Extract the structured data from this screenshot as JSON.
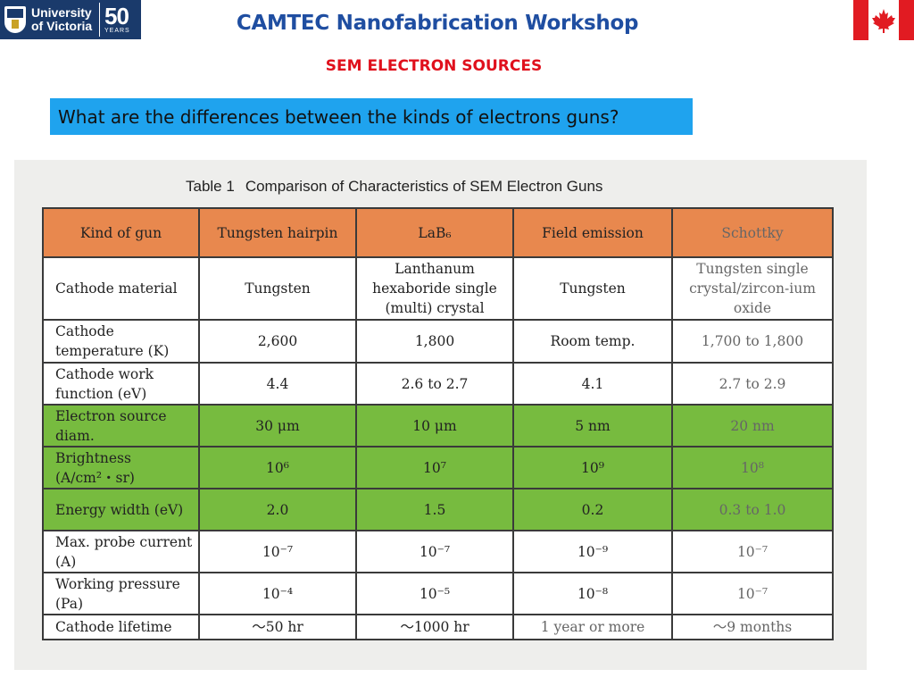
{
  "header": {
    "logo_text": "University of Victoria",
    "logo_anniversary": "50",
    "logo_years": "YEARS",
    "title": "CAMTEC Nanofabrication Workshop",
    "subtitle": "SEM ELECTRON SOURCES"
  },
  "question": "What are the differences between the kinds of electrons guns?",
  "table": {
    "caption_number": "Table 1",
    "caption_text": "Comparison of Characteristics of SEM Electron Guns",
    "headers": [
      "Kind of gun",
      "Tungsten hairpin",
      "LaB₆",
      "Field emission",
      "Schottky"
    ],
    "rows": [
      [
        "Cathode material",
        "Tungsten",
        "Lanthanum hexaboride single (multi) crystal",
        "Tungsten",
        "Tungsten single crystal/zircon-ium oxide"
      ],
      [
        "Cathode temperature (K)",
        "2,600",
        "1,800",
        "Room temp.",
        "1,700 to 1,800"
      ],
      [
        "Cathode work function (eV)",
        "4.4",
        "2.6 to 2.7",
        "4.1",
        "2.7 to 2.9"
      ],
      [
        "Electron source diam.",
        "30 μm",
        "10 μm",
        "5 nm",
        "20 nm"
      ],
      [
        "Brightness (A/cm²・sr)",
        "10⁶",
        "10⁷",
        "10⁹",
        "10⁸"
      ],
      [
        "Energy width (eV)",
        "2.0",
        "1.5",
        "0.2",
        "0.3 to 1.0"
      ],
      [
        "Max. probe current (A)",
        "10⁻⁷",
        "10⁻⁷",
        "10⁻⁹",
        "10⁻⁷"
      ],
      [
        "Working pressure (Pa)",
        "10⁻⁴",
        "10⁻⁵",
        "10⁻⁸",
        "10⁻⁷"
      ],
      [
        "Cathode lifetime",
        "～50 hr",
        "～1000 hr",
        "1 year or more",
        "～9 months"
      ]
    ]
  },
  "colors": {
    "title": "#1f4ea1",
    "subtitle": "#e0101c",
    "question_bg": "#1fa3ee",
    "header_row": "#e8884e",
    "highlight_rows": "#77bb3f"
  },
  "icons": [
    "uvic-shield-icon",
    "maple-leaf-icon"
  ]
}
